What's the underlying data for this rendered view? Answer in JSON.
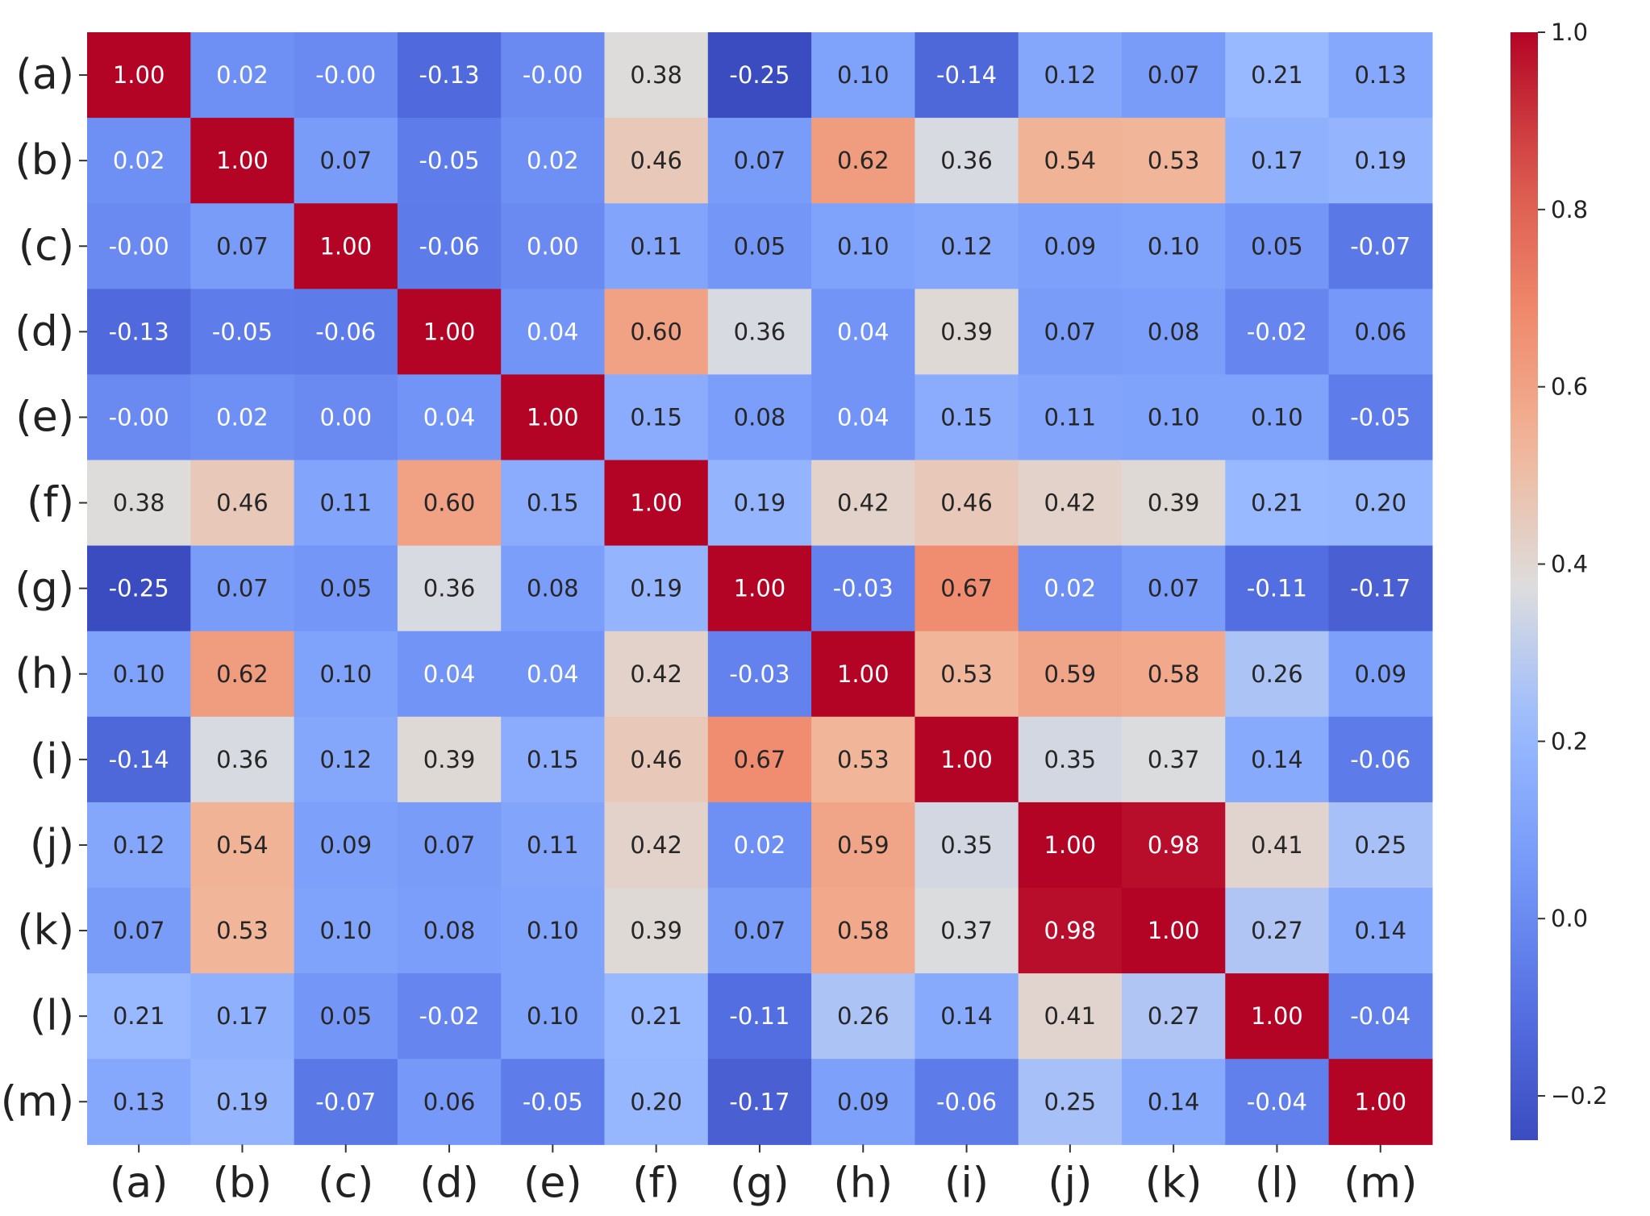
{
  "chart_data": {
    "type": "heatmap",
    "title": "",
    "xlabel": "",
    "ylabel": "",
    "x_labels": [
      "(a)",
      "(b)",
      "(c)",
      "(d)",
      "(e)",
      "(f)",
      "(g)",
      "(h)",
      "(i)",
      "(j)",
      "(k)",
      "(l)",
      "(m)"
    ],
    "y_labels": [
      "(a)",
      "(b)",
      "(c)",
      "(d)",
      "(e)",
      "(f)",
      "(g)",
      "(h)",
      "(i)",
      "(j)",
      "(k)",
      "(l)",
      "(m)"
    ],
    "cell_labels": [
      [
        "1.00",
        "0.02",
        "-0.00",
        "-0.13",
        "-0.00",
        "0.38",
        "-0.25",
        "0.10",
        "-0.14",
        "0.12",
        "0.07",
        "0.21",
        "0.13"
      ],
      [
        "0.02",
        "1.00",
        "0.07",
        "-0.05",
        "0.02",
        "0.46",
        "0.07",
        "0.62",
        "0.36",
        "0.54",
        "0.53",
        "0.17",
        "0.19"
      ],
      [
        "-0.00",
        "0.07",
        "1.00",
        "-0.06",
        "0.00",
        "0.11",
        "0.05",
        "0.10",
        "0.12",
        "0.09",
        "0.10",
        "0.05",
        "-0.07"
      ],
      [
        "-0.13",
        "-0.05",
        "-0.06",
        "1.00",
        "0.04",
        "0.60",
        "0.36",
        "0.04",
        "0.39",
        "0.07",
        "0.08",
        "-0.02",
        "0.06"
      ],
      [
        "-0.00",
        "0.02",
        "0.00",
        "0.04",
        "1.00",
        "0.15",
        "0.08",
        "0.04",
        "0.15",
        "0.11",
        "0.10",
        "0.10",
        "-0.05"
      ],
      [
        "0.38",
        "0.46",
        "0.11",
        "0.60",
        "0.15",
        "1.00",
        "0.19",
        "0.42",
        "0.46",
        "0.42",
        "0.39",
        "0.21",
        "0.20"
      ],
      [
        "-0.25",
        "0.07",
        "0.05",
        "0.36",
        "0.08",
        "0.19",
        "1.00",
        "-0.03",
        "0.67",
        "0.02",
        "0.07",
        "-0.11",
        "-0.17"
      ],
      [
        "0.10",
        "0.62",
        "0.10",
        "0.04",
        "0.04",
        "0.42",
        "-0.03",
        "1.00",
        "0.53",
        "0.59",
        "0.58",
        "0.26",
        "0.09"
      ],
      [
        "-0.14",
        "0.36",
        "0.12",
        "0.39",
        "0.15",
        "0.46",
        "0.67",
        "0.53",
        "1.00",
        "0.35",
        "0.37",
        "0.14",
        "-0.06"
      ],
      [
        "0.12",
        "0.54",
        "0.09",
        "0.07",
        "0.11",
        "0.42",
        "0.02",
        "0.59",
        "0.35",
        "1.00",
        "0.98",
        "0.41",
        "0.25"
      ],
      [
        "0.07",
        "0.53",
        "0.10",
        "0.08",
        "0.10",
        "0.39",
        "0.07",
        "0.58",
        "0.37",
        "0.98",
        "1.00",
        "0.27",
        "0.14"
      ],
      [
        "0.21",
        "0.17",
        "0.05",
        "-0.02",
        "0.10",
        "0.21",
        "-0.11",
        "0.26",
        "0.14",
        "0.41",
        "0.27",
        "1.00",
        "-0.04"
      ],
      [
        "0.13",
        "0.19",
        "-0.07",
        "0.06",
        "-0.05",
        "0.20",
        "-0.17",
        "0.09",
        "-0.06",
        "0.25",
        "0.14",
        "-0.04",
        "1.00"
      ]
    ],
    "vmin": -0.25,
    "vmax": 1.0,
    "colormap": "coolwarm",
    "colorbar_ticks": [
      -0.2,
      0.0,
      0.2,
      0.4,
      0.6,
      0.8,
      1.0
    ],
    "colorbar_tick_labels": [
      "−0.2",
      "0.0",
      "0.2",
      "0.4",
      "0.6",
      "0.8",
      "1.0"
    ],
    "grid": false,
    "legend": "colorbar-right"
  }
}
